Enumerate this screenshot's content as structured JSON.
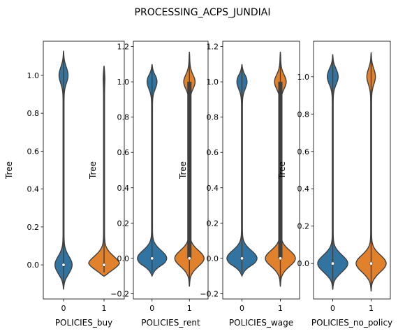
{
  "figure": {
    "suptitle": "PROCESSING_ACPS_JUNDIAI"
  },
  "colors": {
    "class_0": "#3274a1",
    "class_1": "#e1812c",
    "outline": "#3f3f3f",
    "box": "#3f3f3f",
    "median": "#ffffff"
  },
  "chart_data": [
    {
      "type": "violin",
      "xlabel": "POLICIES_buy",
      "ylabel": "Tree",
      "categories": [
        "0",
        "1"
      ],
      "yticks": [
        0.0,
        0.2,
        0.4,
        0.6,
        0.8,
        1.0
      ],
      "ytick_labels": [
        "0.0",
        "0.2",
        "0.4",
        "0.6",
        "0.8",
        "1.0"
      ],
      "ylim": [
        -0.18,
        1.18
      ],
      "violins": [
        {
          "category": "0",
          "min": -0.13,
          "max": 1.13,
          "median": 0.0,
          "q1": 0.0,
          "q3": 0.0,
          "lower_peak_halfwidth": 0.2,
          "upper_peak_halfwidth": 0.1
        },
        {
          "category": "1",
          "min": -0.06,
          "max": 1.05,
          "median": 0.0,
          "q1": 0.0,
          "q3": 0.0,
          "lower_peak_halfwidth": 0.38,
          "upper_peak_halfwidth": 0.01
        }
      ]
    },
    {
      "type": "violin",
      "xlabel": "POLICIES_rent",
      "ylabel": "Tree",
      "categories": [
        "0",
        "1"
      ],
      "yticks": [
        -0.2,
        0.0,
        0.2,
        0.4,
        0.6,
        0.8,
        1.0,
        1.2
      ],
      "ytick_labels": [
        "−0.2",
        "0.0",
        "0.2",
        "0.4",
        "0.6",
        "0.8",
        "1.0",
        "1.2"
      ],
      "ylim": [
        -0.23,
        1.23
      ],
      "violins": [
        {
          "category": "0",
          "min": -0.1,
          "max": 1.1,
          "median": 0.0,
          "q1": 0.0,
          "q3": 0.0,
          "lower_peak_halfwidth": 0.38,
          "upper_peak_halfwidth": 0.12
        },
        {
          "category": "1",
          "min": -0.16,
          "max": 1.17,
          "median": 0.0,
          "q1": 0.0,
          "q3": 1.0,
          "lower_peak_halfwidth": 0.38,
          "upper_peak_halfwidth": 0.14
        }
      ]
    },
    {
      "type": "violin",
      "xlabel": "POLICIES_wage",
      "ylabel": "Tree",
      "categories": [
        "0",
        "1"
      ],
      "yticks": [
        -0.2,
        0.0,
        0.2,
        0.4,
        0.6,
        0.8,
        1.0,
        1.2
      ],
      "ytick_labels": [
        "−0.2",
        "0.0",
        "0.2",
        "0.4",
        "0.6",
        "0.8",
        "1.0",
        "1.2"
      ],
      "ylim": [
        -0.23,
        1.23
      ],
      "violins": [
        {
          "category": "0",
          "min": -0.1,
          "max": 1.1,
          "median": 0.0,
          "q1": 0.0,
          "q3": 0.0,
          "lower_peak_halfwidth": 0.38,
          "upper_peak_halfwidth": 0.12
        },
        {
          "category": "1",
          "min": -0.16,
          "max": 1.17,
          "median": 0.0,
          "q1": 0.0,
          "q3": 1.0,
          "lower_peak_halfwidth": 0.38,
          "upper_peak_halfwidth": 0.14
        }
      ]
    },
    {
      "type": "violin",
      "xlabel": "POLICIES_no_policy",
      "ylabel": "Tree",
      "categories": [
        "0",
        "1"
      ],
      "yticks": [
        0.0,
        0.2,
        0.4,
        0.6,
        0.8,
        1.0
      ],
      "ytick_labels": [
        "0.0",
        "0.2",
        "0.4",
        "0.6",
        "0.8",
        "1.0"
      ],
      "ylim": [
        -0.19,
        1.19
      ],
      "violins": [
        {
          "category": "0",
          "min": -0.14,
          "max": 1.12,
          "median": 0.0,
          "q1": 0.0,
          "q3": 0.0,
          "lower_peak_halfwidth": 0.38,
          "upper_peak_halfwidth": 0.13
        },
        {
          "category": "1",
          "min": -0.15,
          "max": 1.13,
          "median": 0.0,
          "q1": 0.0,
          "q3": 0.0,
          "lower_peak_halfwidth": 0.38,
          "upper_peak_halfwidth": 0.1
        }
      ]
    }
  ]
}
